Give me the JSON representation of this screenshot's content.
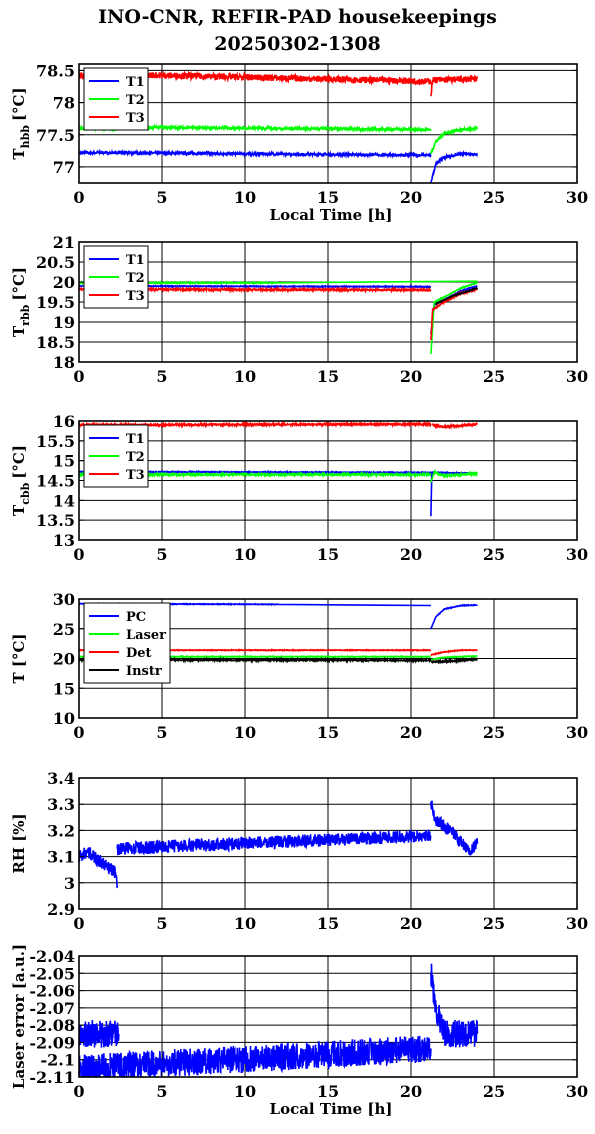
{
  "title_line1": "INO-CNR, REFIR-PAD housekeepings",
  "title_line2": "20250302-1308",
  "chart_data": [
    {
      "type": "line",
      "ylabel_main": "T",
      "ylabel_sub": "hbb",
      "ylabel_unit": "[°C]",
      "xlabel": "Local Time [h]",
      "xlim": [
        0,
        30
      ],
      "ylim": [
        76.75,
        78.6
      ],
      "xticks": [
        0,
        5,
        10,
        15,
        20,
        25,
        30
      ],
      "yticks": [
        77,
        77.5,
        78,
        78.5
      ],
      "ytick_labels": [
        "77",
        "77.5",
        "78",
        "78.5"
      ],
      "legend": "top-left",
      "series": [
        {
          "name": "T1",
          "color": "#0000ff",
          "segments": [
            [
              [
                0,
                77.22
              ],
              [
                2.4,
                77.22
              ]
            ],
            [
              [
                2.4,
                77.22
              ],
              [
                21.2,
                77.18
              ]
            ],
            [
              [
                21.2,
                76.75
              ],
              [
                21.5,
                77.05
              ],
              [
                22,
                77.15
              ],
              [
                23,
                77.2
              ],
              [
                24,
                77.2
              ]
            ]
          ],
          "noise": 0.02
        },
        {
          "name": "T2",
          "color": "#00ff00",
          "segments": [
            [
              [
                0,
                77.6
              ],
              [
                2.4,
                77.6
              ]
            ],
            [
              [
                2.4,
                77.62
              ],
              [
                21.2,
                77.58
              ]
            ],
            [
              [
                21.2,
                77.2
              ],
              [
                21.5,
                77.4
              ],
              [
                22,
                77.52
              ],
              [
                23,
                77.58
              ],
              [
                24,
                77.6
              ]
            ]
          ],
          "noise": 0.02
        },
        {
          "name": "T3",
          "color": "#ff0000",
          "segments": [
            [
              [
                0,
                78.42
              ],
              [
                2.4,
                78.45
              ]
            ],
            [
              [
                2.4,
                78.44
              ],
              [
                21.2,
                78.33
              ]
            ],
            [
              [
                21.2,
                78.1
              ],
              [
                21.3,
                78.35
              ],
              [
                24,
                78.37
              ]
            ]
          ],
          "noise": 0.05
        }
      ]
    },
    {
      "type": "line",
      "ylabel_main": "T",
      "ylabel_sub": "rbb",
      "ylabel_unit": "[°C]",
      "xlabel": "",
      "xlim": [
        0,
        30
      ],
      "ylim": [
        18,
        21
      ],
      "xticks": [
        0,
        5,
        10,
        15,
        20,
        25,
        30
      ],
      "yticks": [
        18,
        18.5,
        19,
        19.5,
        20,
        20.5,
        21
      ],
      "ytick_labels": [
        "18",
        "18.5",
        "19",
        "19.5",
        "20",
        "20.5",
        "21"
      ],
      "legend": "top-left",
      "series": [
        {
          "name": "T1",
          "color": "#0000ff",
          "segments": [
            [
              [
                0,
                19.9
              ],
              [
                21.2,
                19.88
              ]
            ],
            [
              [
                21.2,
                18.7
              ],
              [
                21.4,
                19.45
              ],
              [
                22,
                19.55
              ],
              [
                23,
                19.78
              ],
              [
                24,
                19.9
              ]
            ]
          ],
          "noise": 0.01
        },
        {
          "name": "T2",
          "color": "#00ff00",
          "segments": [
            [
              [
                0,
                19.98
              ],
              [
                12,
                19.98
              ],
              [
                24,
                20.02
              ]
            ],
            [
              [
                21.2,
                18.2
              ],
              [
                21.4,
                19.5
              ],
              [
                22,
                19.62
              ],
              [
                23,
                19.85
              ],
              [
                24,
                19.98
              ]
            ]
          ],
          "noise": 0.01
        },
        {
          "name": "T3",
          "color": "#ff0000",
          "segments": [
            [
              [
                0,
                19.82
              ],
              [
                21.2,
                19.8
              ]
            ],
            [
              [
                21.2,
                18.55
              ],
              [
                21.3,
                19.3
              ],
              [
                22,
                19.5
              ],
              [
                23,
                19.72
              ],
              [
                24,
                19.82
              ]
            ]
          ],
          "noise": 0.02
        },
        {
          "name": "",
          "color": "#000000",
          "segments": [
            [
              [
                21.5,
                19.45
              ],
              [
                22.5,
                19.65
              ],
              [
                24,
                19.85
              ]
            ]
          ],
          "noise": 0.01
        }
      ]
    },
    {
      "type": "line",
      "ylabel_main": "T",
      "ylabel_sub": "cbb",
      "ylabel_unit": "[°C]",
      "xlabel": "",
      "xlim": [
        0,
        30
      ],
      "ylim": [
        13,
        16
      ],
      "xticks": [
        0,
        5,
        10,
        15,
        20,
        25,
        30
      ],
      "yticks": [
        13,
        13.5,
        14,
        14.5,
        15,
        15.5,
        16
      ],
      "ytick_labels": [
        "13",
        "13.5",
        "14",
        "14.5",
        "15",
        "15.5",
        "16"
      ],
      "legend": "top-left",
      "series": [
        {
          "name": "T1",
          "color": "#0000ff",
          "segments": [
            [
              [
                0,
                14.72
              ],
              [
                21.2,
                14.7
              ]
            ],
            [
              [
                21.2,
                13.6
              ],
              [
                21.25,
                14.7
              ],
              [
                24,
                14.68
              ]
            ]
          ],
          "noise": 0.01
        },
        {
          "name": "T2",
          "color": "#00ff00",
          "segments": [
            [
              [
                0,
                14.65
              ],
              [
                21.2,
                14.65
              ]
            ],
            [
              [
                21.2,
                14.45
              ],
              [
                21.4,
                14.72
              ],
              [
                22,
                14.62
              ],
              [
                24,
                14.68
              ]
            ]
          ],
          "noise": 0.02
        },
        {
          "name": "T3",
          "color": "#ff0000",
          "segments": [
            [
              [
                0,
                15.9
              ],
              [
                21.2,
                15.92
              ]
            ],
            [
              [
                21.3,
                15.9
              ],
              [
                22,
                15.85
              ],
              [
                24,
                15.92
              ]
            ]
          ],
          "noise": 0.02
        }
      ]
    },
    {
      "type": "line",
      "ylabel_main": "T [°C]",
      "ylabel_sub": "",
      "ylabel_unit": "",
      "xlabel": "",
      "xlim": [
        0,
        30
      ],
      "ylim": [
        10,
        30
      ],
      "xticks": [
        0,
        5,
        10,
        15,
        20,
        25,
        30
      ],
      "yticks": [
        10,
        15,
        20,
        25,
        30
      ],
      "ytick_labels": [
        "10",
        "15",
        "20",
        "25",
        "30"
      ],
      "legend": "top-left",
      "series": [
        {
          "name": "PC",
          "color": "#0000ff",
          "segments": [
            [
              [
                0,
                29.2
              ],
              [
                12,
                29.1
              ],
              [
                21.2,
                28.9
              ]
            ],
            [
              [
                21.2,
                25
              ],
              [
                21.5,
                27
              ],
              [
                22,
                28.3
              ],
              [
                23,
                28.9
              ],
              [
                24,
                29.0
              ]
            ]
          ],
          "noise": 0.05
        },
        {
          "name": "Laser",
          "color": "#00ff00",
          "segments": [
            [
              [
                0,
                20.3
              ],
              [
                21.2,
                20.3
              ]
            ],
            [
              [
                21.2,
                19.8
              ],
              [
                22,
                20.2
              ],
              [
                24,
                20.4
              ]
            ]
          ],
          "noise": 0.05
        },
        {
          "name": "Det",
          "color": "#ff0000",
          "segments": [
            [
              [
                0,
                21.4
              ],
              [
                21.2,
                21.4
              ]
            ],
            [
              [
                21.2,
                20.6
              ],
              [
                22,
                21.1
              ],
              [
                23,
                21.4
              ],
              [
                24,
                21.4
              ]
            ]
          ],
          "noise": 0.05
        },
        {
          "name": "Instr",
          "color": "#000000",
          "segments": [
            [
              [
                0,
                19.8
              ],
              [
                21.2,
                19.7
              ]
            ],
            [
              [
                21.2,
                19.4
              ],
              [
                22,
                19.5
              ],
              [
                24,
                19.9
              ]
            ]
          ],
          "noise": 0.12
        }
      ]
    },
    {
      "type": "line",
      "ylabel_main": "RH [%]",
      "ylabel_sub": "",
      "ylabel_unit": "",
      "xlabel": "",
      "xlim": [
        0,
        30
      ],
      "ylim": [
        2.9,
        3.4
      ],
      "xticks": [
        0,
        5,
        10,
        15,
        20,
        25,
        30
      ],
      "yticks": [
        2.9,
        3,
        3.1,
        3.2,
        3.3,
        3.4
      ],
      "ytick_labels": [
        "2.9",
        "3",
        "3.1",
        "3.2",
        "3.3",
        "3.4"
      ],
      "legend": "none",
      "series": [
        {
          "name": "",
          "color": "#0000ff",
          "segments": [
            [
              [
                0,
                3.1
              ],
              [
                0.5,
                3.12
              ],
              [
                1.5,
                3.07
              ],
              [
                2.2,
                3.04
              ],
              [
                2.3,
                2.98
              ]
            ],
            [
              [
                2.3,
                3.13
              ],
              [
                21.2,
                3.18
              ]
            ],
            [
              [
                21.2,
                3.31
              ],
              [
                21.5,
                3.24
              ],
              [
                22.5,
                3.19
              ],
              [
                23.5,
                3.12
              ],
              [
                24,
                3.15
              ]
            ]
          ],
          "noise": 0.025
        }
      ]
    },
    {
      "type": "line",
      "ylabel_main": "Laser error [a.u.]",
      "ylabel_sub": "",
      "ylabel_unit": "",
      "xlabel": "Local Time [h]",
      "xlim": [
        0,
        30
      ],
      "ylim": [
        -2.11,
        -2.04
      ],
      "xticks": [
        0,
        5,
        10,
        15,
        20,
        25,
        30
      ],
      "yticks": [
        -2.11,
        -2.1,
        -2.09,
        -2.08,
        -2.07,
        -2.06,
        -2.05,
        -2.04
      ],
      "ytick_labels": [
        "-2.11",
        "-2.1",
        "-2.09",
        "-2.08",
        "-2.07",
        "-2.06",
        "-2.05",
        "-2.04"
      ],
      "legend": "none",
      "series": [
        {
          "name": "",
          "color": "#0000ff",
          "segments": [
            [
              [
                0,
                -2.085
              ],
              [
                2.4,
                -2.085
              ]
            ],
            [
              [
                0,
                -2.105
              ],
              [
                21.2,
                -2.0935
              ]
            ],
            [
              [
                21.2,
                -2.05
              ],
              [
                21.5,
                -2.07
              ],
              [
                22,
                -2.085
              ],
              [
                24,
                -2.085
              ]
            ]
          ],
          "noise": 0.008
        }
      ]
    }
  ]
}
